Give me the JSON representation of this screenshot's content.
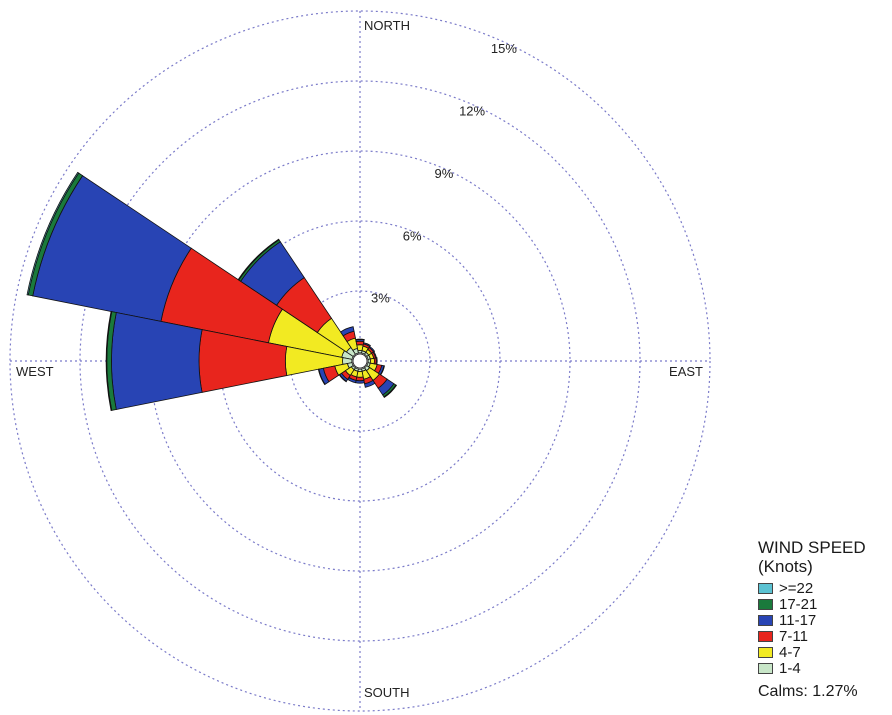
{
  "chart_data": {
    "type": "wind-rose",
    "directions": [
      "NORTH",
      "EAST",
      "SOUTH",
      "WEST"
    ],
    "ring_labels": [
      "3%",
      "6%",
      "9%",
      "12%",
      "15%"
    ],
    "rings": [
      3,
      6,
      9,
      12,
      15
    ],
    "max_ring": 15,
    "legend_title": "WIND SPEED",
    "legend_unit": "(Knots)",
    "speed_bins": [
      {
        "label": ">=22",
        "color": "#5bc2d2"
      },
      {
        "label": "17-21",
        "color": "#1a7a3c"
      },
      {
        "label": "11-17",
        "color": "#2844b4"
      },
      {
        "label": "7-11",
        "color": "#e8251d"
      },
      {
        "label": "4-7",
        "color": "#f2ea22"
      },
      {
        "label": "1-4",
        "color": "#c8e6c8"
      }
    ],
    "calms": "Calms: 1.27%",
    "sector_width_deg": 22.5,
    "sectors": [
      {
        "dir": 0,
        "cum": {
          "1-4": 0.45,
          "4-7": 0.7,
          "7-11": 0.85,
          "11-17": 0.92,
          "17-21": 0.94,
          ">=22": 0.94
        }
      },
      {
        "dir": 22.5,
        "cum": {
          "1-4": 0.45,
          "4-7": 0.65,
          "7-11": 0.75,
          "11-17": 0.8,
          "17-21": 0.8,
          ">=22": 0.8
        }
      },
      {
        "dir": 45,
        "cum": {
          "1-4": 0.45,
          "4-7": 0.6,
          "7-11": 0.7,
          "11-17": 0.75,
          "17-21": 0.75,
          ">=22": 0.75
        }
      },
      {
        "dir": 67.5,
        "cum": {
          "1-4": 0.45,
          "4-7": 0.6,
          "7-11": 0.68,
          "11-17": 0.72,
          "17-21": 0.72,
          ">=22": 0.72
        }
      },
      {
        "dir": 90,
        "cum": {
          "1-4": 0.45,
          "4-7": 0.62,
          "7-11": 0.7,
          "11-17": 0.74,
          "17-21": 0.74,
          ">=22": 0.74
        }
      },
      {
        "dir": 112.5,
        "cum": {
          "1-4": 0.45,
          "4-7": 0.75,
          "7-11": 0.95,
          "11-17": 1.05,
          "17-21": 1.07,
          ">=22": 1.07
        }
      },
      {
        "dir": 135,
        "cum": {
          "1-4": 0.5,
          "4-7": 1.0,
          "7-11": 1.4,
          "11-17": 1.75,
          "17-21": 1.85,
          ">=22": 1.88
        }
      },
      {
        "dir": 157.5,
        "cum": {
          "1-4": 0.45,
          "4-7": 0.8,
          "7-11": 1.0,
          "11-17": 1.15,
          "17-21": 1.15,
          ">=22": 1.15
        }
      },
      {
        "dir": 180,
        "cum": {
          "1-4": 0.45,
          "4-7": 0.7,
          "7-11": 0.85,
          "11-17": 0.95,
          "17-21": 0.95,
          ">=22": 0.95
        }
      },
      {
        "dir": 202.5,
        "cum": {
          "1-4": 0.45,
          "4-7": 0.7,
          "7-11": 0.85,
          "11-17": 0.95,
          "17-21": 0.95,
          ">=22": 0.95
        }
      },
      {
        "dir": 225,
        "cum": {
          "1-4": 0.45,
          "4-7": 0.75,
          "7-11": 0.95,
          "11-17": 1.05,
          "17-21": 1.07,
          ">=22": 1.07
        }
      },
      {
        "dir": 247.5,
        "cum": {
          "1-4": 0.55,
          "4-7": 1.1,
          "7-11": 1.6,
          "11-17": 1.8,
          "17-21": 1.82,
          ">=22": 1.82
        }
      },
      {
        "dir": 270,
        "cum": {
          "1-4": 0.75,
          "4-7": 3.2,
          "7-11": 6.9,
          "11-17": 10.65,
          "17-21": 10.85,
          ">=22": 10.88
        }
      },
      {
        "dir": 292.5,
        "cum": {
          "1-4": 0.8,
          "4-7": 4.0,
          "7-11": 8.7,
          "11-17": 14.3,
          "17-21": 14.5,
          ">=22": 14.55
        }
      },
      {
        "dir": 315,
        "cum": {
          "1-4": 0.7,
          "4-7": 2.2,
          "7-11": 4.3,
          "11-17": 6.15,
          "17-21": 6.25,
          ">=22": 6.28
        }
      },
      {
        "dir": 337.5,
        "cum": {
          "1-4": 0.55,
          "4-7": 1.0,
          "7-11": 1.3,
          "11-17": 1.5,
          "17-21": 1.5,
          ">=22": 1.5
        }
      }
    ]
  }
}
